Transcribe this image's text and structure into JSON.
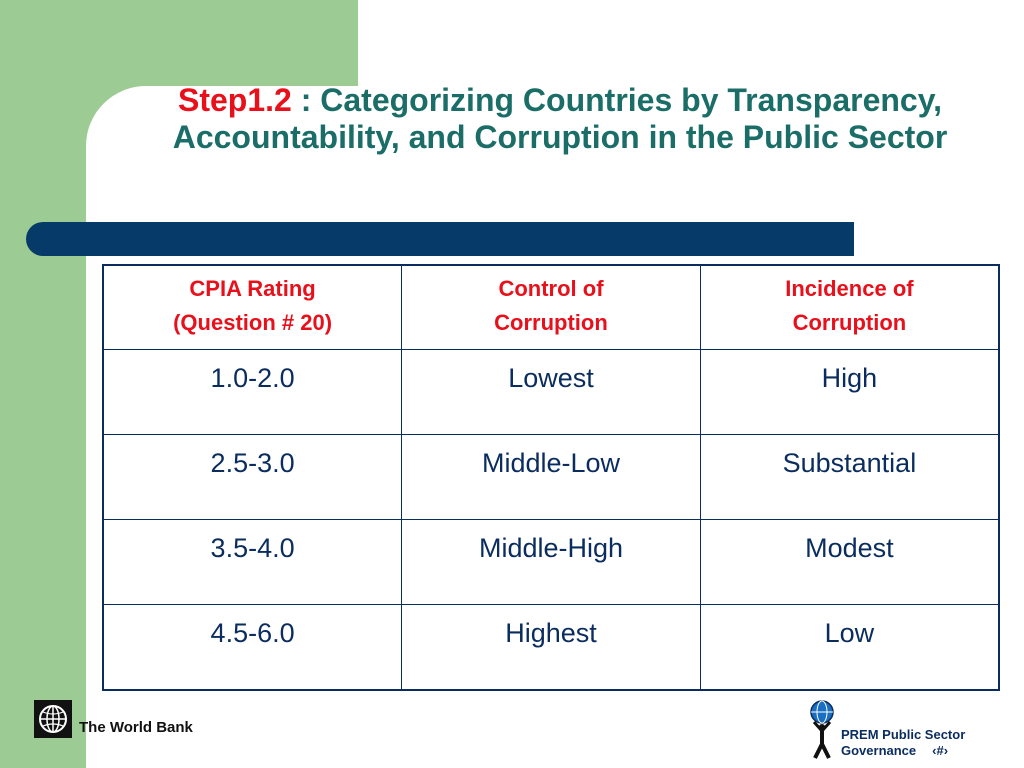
{
  "slide": {
    "title_step": "Step1.2",
    "title_rest": " : Categorizing Countries by Transparency, Accountability, and Corruption in the Public Sector"
  },
  "table": {
    "headers": [
      [
        "CPIA Rating",
        "(Question # 20)"
      ],
      [
        "Control of",
        "Corruption"
      ],
      [
        "Incidence of",
        "Corruption"
      ]
    ],
    "rows": [
      [
        "1.0-2.0",
        "Lowest",
        "High"
      ],
      [
        "2.5-3.0",
        "Middle-Low",
        "Substantial"
      ],
      [
        "3.5-4.0",
        "Middle-High",
        "Modest"
      ],
      [
        "4.5-6.0",
        "Highest",
        "Low"
      ]
    ]
  },
  "footer": {
    "left_label": "The World Bank",
    "right_line1": "PREM Public Sector",
    "right_line2": "Governance",
    "page_marker": "‹#›"
  },
  "colors": {
    "green": "#9ccc94",
    "title_teal": "#1b6e68",
    "accent_red": "#e8101b",
    "navy": "#053a69"
  }
}
